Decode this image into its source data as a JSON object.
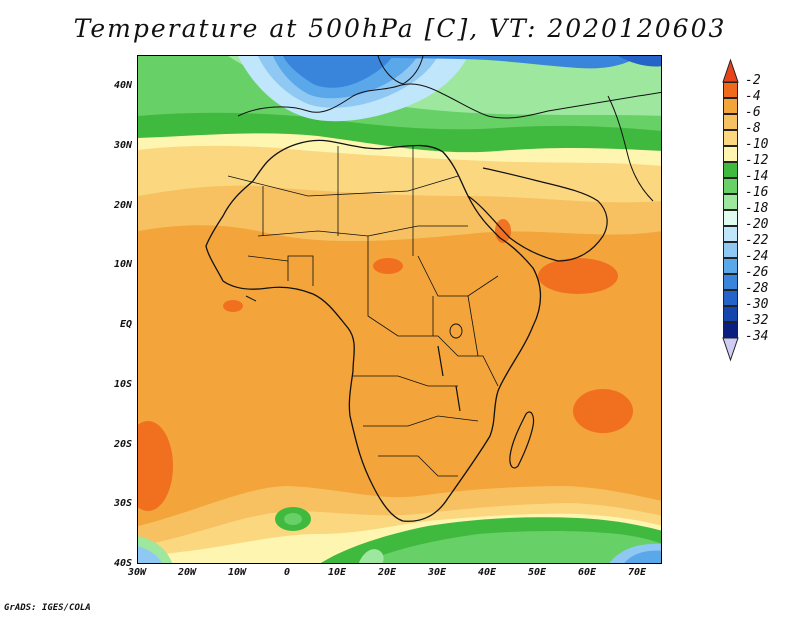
{
  "title": "Temperature at 500hPa [C], VT: 2020120603",
  "footer": "GrADS: IGES/COLA",
  "y_ticks": [
    "40N",
    "30N",
    "20N",
    "10N",
    "EQ",
    "10S",
    "20S",
    "30S",
    "40S"
  ],
  "x_ticks": [
    "30W",
    "20W",
    "10W",
    "0",
    "10E",
    "20E",
    "30E",
    "40E",
    "50E",
    "60E",
    "70E"
  ],
  "colorbar": {
    "labels": [
      "-2",
      "-4",
      "-6",
      "-8",
      "-10",
      "-12",
      "-14",
      "-16",
      "-18",
      "-20",
      "-22",
      "-24",
      "-26",
      "-28",
      "-30",
      "-32",
      "-34"
    ],
    "colors": {
      "gt_-2": "#e8441c",
      "-2_-4": "#f06a1e",
      "-4_-6": "#f3a43a",
      "-6_-8": "#f7c060",
      "-8_-10": "#fbd77f",
      "-10_-12": "#fef5b0",
      "-12_-14": "#3fba3f",
      "-14_-16": "#67d067",
      "-16_-18": "#9ee79e",
      "-18_-20": "#e0fbf0",
      "-20_-22": "#bfe6fa",
      "-22_-24": "#8fc9f3",
      "-24_-26": "#5aa7ea",
      "-26_-28": "#3985dc",
      "-28_-30": "#2563c9",
      "-30_-32": "#1446ae",
      "-32_-34": "#0a1f80",
      "lt_-34": "#d0cdf5"
    }
  },
  "map": {
    "region": "Africa",
    "lon_range": [
      -30,
      75
    ],
    "lat_range": [
      -40,
      45
    ],
    "field": "temperature at 500hPa",
    "units": "C"
  }
}
